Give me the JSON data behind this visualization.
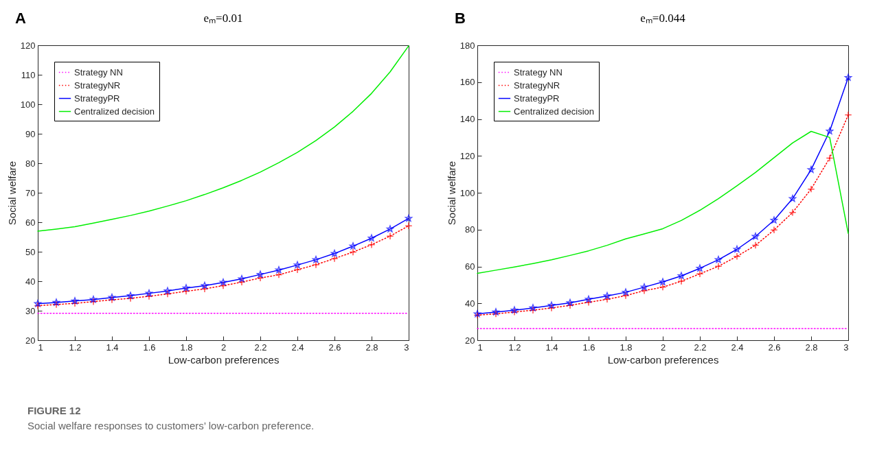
{
  "chart_data": [
    {
      "type": "line",
      "title": "eₘ=0.01",
      "xlabel": "Low-carbon preferences",
      "ylabel": "Social welfare",
      "annotations": [
        "A",
        "FIGURE 12",
        "Social welfare responses to customers’ low-carbon preference."
      ],
      "x": [
        1,
        1.1,
        1.2,
        1.3,
        1.4,
        1.5,
        1.6,
        1.7,
        1.8,
        1.9,
        2,
        2.1,
        2.2,
        2.3,
        2.4,
        2.5,
        2.6,
        2.7,
        2.8,
        2.9,
        3
      ],
      "xlim": [
        1,
        3
      ],
      "xticks": [
        1,
        1.2,
        1.4,
        1.6,
        1.8,
        2,
        2.2,
        2.4,
        2.6,
        2.8,
        3
      ],
      "ylim": [
        20,
        120
      ],
      "yticks": [
        20,
        30,
        40,
        50,
        60,
        70,
        80,
        90,
        100,
        110,
        120
      ],
      "grid": false,
      "legend": "top left",
      "series": [
        {
          "name": "Strategy NN",
          "color": "#ff00ff",
          "line_style": "dotted",
          "marker": "none",
          "values": [
            29.1,
            29.1,
            29.1,
            29.1,
            29.1,
            29.1,
            29.1,
            29.1,
            29.1,
            29.1,
            29.1,
            29.1,
            29.1,
            29.1,
            29.1,
            29.1,
            29.1,
            29.1,
            29.1,
            29.1,
            29.1
          ]
        },
        {
          "name": "StrategyNR",
          "color": "#ff0000",
          "line_style": "dotted",
          "marker": "cross",
          "values": [
            31.7,
            32.1,
            32.5,
            33.1,
            33.7,
            34.2,
            34.9,
            35.7,
            36.6,
            37.4,
            38.5,
            39.7,
            41.1,
            42.2,
            43.9,
            45.6,
            47.7,
            49.9,
            52.4,
            55.3,
            58.8
          ]
        },
        {
          "name": "StrategyPR",
          "color": "#0000ff",
          "line_style": "solid",
          "marker": "star",
          "values": [
            32.4,
            32.8,
            33.3,
            33.8,
            34.5,
            35.1,
            35.9,
            36.7,
            37.7,
            38.5,
            39.6,
            40.8,
            42.3,
            43.8,
            45.5,
            47.3,
            49.4,
            51.9,
            54.6,
            57.7,
            61.3
          ]
        },
        {
          "name": "Centralized decision",
          "color": "#00ee00",
          "line_style": "solid",
          "marker": "none",
          "values": [
            57,
            57.7,
            58.5,
            59.7,
            61,
            62.3,
            63.8,
            65.5,
            67.3,
            69.4,
            71.7,
            74.2,
            77,
            80.2,
            83.7,
            87.7,
            92.3,
            97.6,
            103.7,
            111,
            119.8
          ]
        }
      ]
    },
    {
      "type": "line",
      "title": "eₘ=0.044",
      "xlabel": "Low-carbon preferences",
      "ylabel": "Social welfare",
      "annotations": [
        "B"
      ],
      "x": [
        1,
        1.1,
        1.2,
        1.3,
        1.4,
        1.5,
        1.6,
        1.7,
        1.8,
        1.9,
        2,
        2.1,
        2.2,
        2.3,
        2.4,
        2.5,
        2.6,
        2.7,
        2.8,
        2.9,
        3
      ],
      "xlim": [
        1,
        3
      ],
      "xticks": [
        1,
        1.2,
        1.4,
        1.6,
        1.8,
        2,
        2.2,
        2.4,
        2.6,
        2.8,
        3
      ],
      "ylim": [
        20,
        180
      ],
      "yticks": [
        20,
        40,
        60,
        80,
        100,
        120,
        140,
        160,
        180
      ],
      "grid": false,
      "legend": "top left",
      "series": [
        {
          "name": "Strategy NN",
          "color": "#ff00ff",
          "line_style": "dotted",
          "marker": "none",
          "values": [
            26.3,
            26.3,
            26.3,
            26.3,
            26.3,
            26.3,
            26.3,
            26.3,
            26.3,
            26.3,
            26.3,
            26.3,
            26.3,
            26.3,
            26.3,
            26.3,
            26.3,
            26.3,
            26.3,
            26.3,
            26.3
          ]
        },
        {
          "name": "StrategyNR",
          "color": "#ff0000",
          "line_style": "dotted",
          "marker": "cross",
          "values": [
            33.6,
            34.3,
            35.3,
            36.3,
            37.5,
            38.9,
            40.6,
            42.2,
            44.2,
            46.9,
            48.8,
            52.0,
            56.0,
            60.1,
            65.5,
            71.5,
            79.8,
            89.3,
            102.0,
            118.8,
            142.2
          ]
        },
        {
          "name": "StrategyPR",
          "color": "#0000ff",
          "line_style": "solid",
          "marker": "star",
          "values": [
            34.3,
            35.3,
            36.3,
            37.5,
            38.9,
            40.3,
            42.2,
            44,
            46,
            48.8,
            51.6,
            54.9,
            59,
            63.7,
            69.3,
            76.3,
            85.1,
            96.8,
            112.5,
            133.4,
            162.5
          ]
        },
        {
          "name": "Centralized decision",
          "color": "#00ee00",
          "line_style": "solid",
          "marker": "none",
          "values": [
            56.3,
            58,
            59.7,
            61.6,
            63.6,
            66,
            68.5,
            71.5,
            75,
            77.7,
            80.5,
            85,
            90.5,
            96.8,
            103.8,
            111,
            119,
            127,
            133.3,
            130,
            78
          ]
        }
      ]
    }
  ]
}
